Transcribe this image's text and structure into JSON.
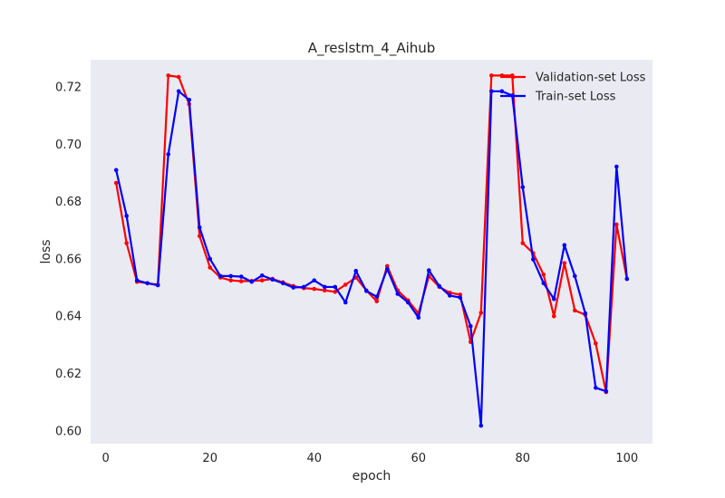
{
  "chart_data": {
    "type": "line",
    "title": "A_reslstm_4_Aihub",
    "xlabel": "epoch",
    "ylabel": "loss",
    "xlim": [
      -2.9,
      104.9
    ],
    "ylim": [
      0.5955,
      0.7295
    ],
    "xticks": [
      0,
      20,
      40,
      60,
      80,
      100
    ],
    "yticks": [
      0.6,
      0.62,
      0.64,
      0.66,
      0.68,
      0.7,
      0.72
    ],
    "ytick_labels": [
      "0.60",
      "0.62",
      "0.64",
      "0.66",
      "0.68",
      "0.70",
      "0.72"
    ],
    "grid": false,
    "background": "#EAEAF2",
    "legend_position": "top-right",
    "x": [
      2,
      4,
      6,
      8,
      10,
      12,
      14,
      16,
      18,
      20,
      22,
      24,
      26,
      28,
      30,
      32,
      34,
      36,
      38,
      40,
      42,
      44,
      46,
      48,
      50,
      52,
      54,
      56,
      58,
      60,
      62,
      64,
      66,
      68,
      70,
      72,
      74,
      76,
      78,
      80,
      82,
      84,
      86,
      88,
      90,
      92,
      94,
      96,
      98,
      100
    ],
    "series": [
      {
        "name": "Validation-set Loss",
        "color": "#FF0000",
        "values": [
          0.6865,
          0.6655,
          0.652,
          0.6515,
          0.651,
          0.724,
          0.7235,
          0.714,
          0.668,
          0.657,
          0.6535,
          0.6525,
          0.6522,
          0.6523,
          0.6525,
          0.653,
          0.6518,
          0.6505,
          0.6498,
          0.6495,
          0.649,
          0.6485,
          0.651,
          0.6535,
          0.649,
          0.6452,
          0.6575,
          0.649,
          0.6455,
          0.641,
          0.654,
          0.6502,
          0.6482,
          0.6475,
          0.631,
          0.6412,
          0.724,
          0.724,
          0.724,
          0.6655,
          0.662,
          0.6545,
          0.64,
          0.6585,
          0.642,
          0.6405,
          0.6305,
          0.6135,
          0.672,
          0.653
        ]
      },
      {
        "name": "Train-set Loss",
        "color": "#0000FF",
        "values": [
          0.691,
          0.675,
          0.6525,
          0.6515,
          0.6508,
          0.6965,
          0.7185,
          0.7155,
          0.671,
          0.66,
          0.654,
          0.654,
          0.6538,
          0.652,
          0.6542,
          0.6528,
          0.6515,
          0.65,
          0.6502,
          0.6525,
          0.6502,
          0.6502,
          0.6448,
          0.6558,
          0.6488,
          0.6468,
          0.6565,
          0.6478,
          0.6448,
          0.6395,
          0.656,
          0.6505,
          0.6472,
          0.6465,
          0.6365,
          0.6018,
          0.7185,
          0.7185,
          0.717,
          0.685,
          0.6598,
          0.6515,
          0.646,
          0.6648,
          0.654,
          0.641,
          0.615,
          0.6138,
          0.6922,
          0.653
        ]
      }
    ]
  }
}
